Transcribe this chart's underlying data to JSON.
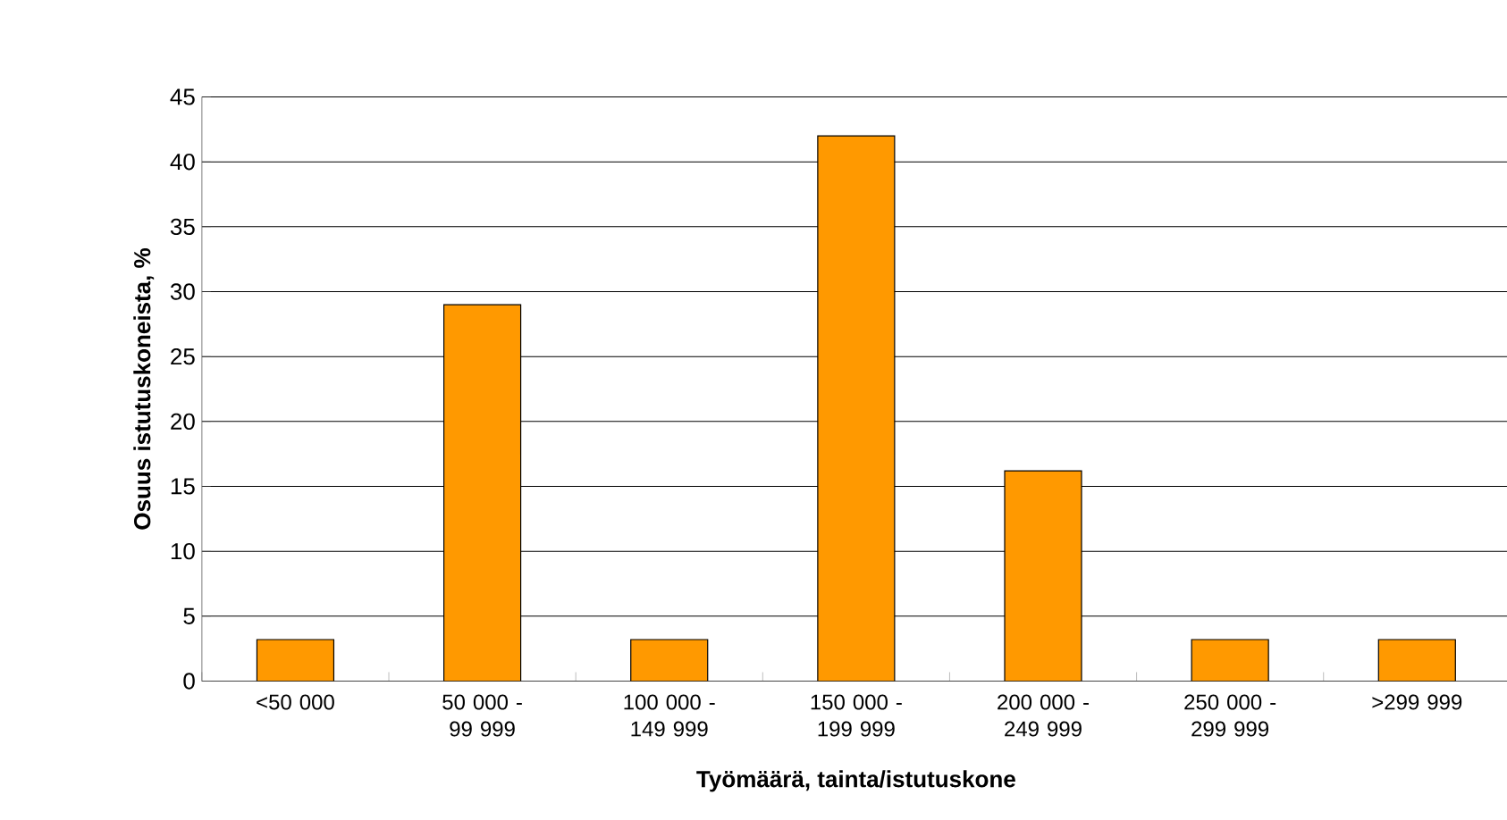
{
  "chart_data": {
    "type": "bar",
    "xlabel": "Työmäärä, tainta/istutuskone",
    "ylabel": "Osuus istutuskoneista, %",
    "categories": [
      "<50 000",
      "50 000 - 99 999",
      "100 000 - 149 999",
      "150 000 - 199 999",
      "200 000 - 249 999",
      "250 000 - 299 999",
      ">299 999"
    ],
    "values": [
      3.2,
      29,
      3.2,
      42,
      16.2,
      3.2,
      3.2
    ],
    "color": "#ff9900",
    "ylim": [
      0,
      45
    ],
    "yticks": [
      0,
      5,
      10,
      15,
      20,
      25,
      30,
      35,
      40,
      45
    ],
    "grid": "y"
  }
}
